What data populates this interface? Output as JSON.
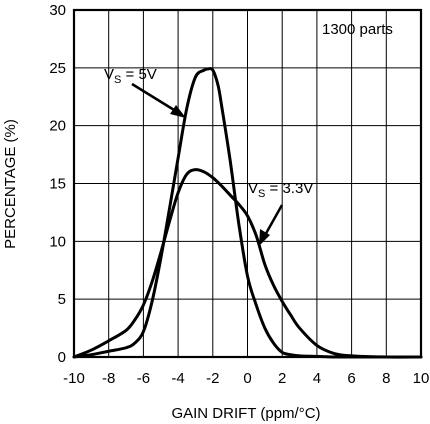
{
  "chart_data": {
    "type": "line",
    "xlabel": "GAIN DRIFT (ppm/°C)",
    "ylabel": "PERCENTAGE (%)",
    "xlim": [
      -10,
      10
    ],
    "ylim": [
      0,
      30
    ],
    "x_ticks": [
      -10,
      -8,
      -6,
      -4,
      -2,
      0,
      2,
      4,
      6,
      8,
      10
    ],
    "y_ticks": [
      0,
      5,
      10,
      15,
      20,
      25,
      30
    ],
    "x_tick_labels": [
      "-10",
      "-8",
      "-6",
      "-4",
      "-2",
      "0",
      "2",
      "4",
      "6",
      "8",
      "10"
    ],
    "y_tick_labels": [
      "0",
      "5",
      "10",
      "15",
      "20",
      "25",
      "30"
    ],
    "grid": true,
    "annotations": {
      "parts": "1300 parts",
      "vs5_prefix": "V",
      "vs5_sub": "S",
      "vs5_value": " = 5V",
      "vs33_prefix": "V",
      "vs33_sub": "S",
      "vs33_value": " = 3.3V"
    },
    "series": [
      {
        "x": [
          -10,
          -9,
          -8,
          -7,
          -6.5,
          -6,
          -5.5,
          -5,
          -4.5,
          -4,
          -3.5,
          -3,
          -2.5,
          -2.3,
          -2,
          -1.7,
          -1.5,
          -1,
          -0.5,
          0,
          0.5,
          1,
          1.5,
          2,
          2.5,
          3,
          4,
          5,
          6,
          8,
          10
        ],
        "values": [
          0,
          0.2,
          0.5,
          0.8,
          1.2,
          2.2,
          4.8,
          8.5,
          12.8,
          17.2,
          21.5,
          24.2,
          24.8,
          24.9,
          24.8,
          23.5,
          21.8,
          17,
          11.5,
          7,
          4.5,
          2.5,
          1.2,
          0.4,
          0.2,
          0.1,
          0.05,
          0,
          0,
          0,
          0
        ],
        "color": "#000000"
      },
      {
        "x": [
          -10,
          -9,
          -8,
          -7,
          -6.5,
          -6,
          -5.5,
          -5,
          -4.5,
          -4,
          -3.5,
          -3,
          -2.5,
          -2,
          -1.5,
          -1,
          -0.5,
          0,
          0.5,
          1,
          1.5,
          2,
          2.5,
          3,
          4,
          5,
          6,
          8,
          10
        ],
        "values": [
          0,
          0.6,
          1.4,
          2.3,
          3.2,
          4.5,
          6.5,
          9.0,
          11.7,
          14.2,
          15.8,
          16.2,
          16.0,
          15.5,
          14.8,
          14.0,
          13.2,
          12.2,
          10.5,
          8.0,
          6.2,
          4.8,
          3.6,
          2.5,
          1.0,
          0.3,
          0.1,
          0,
          0
        ],
        "color": "#000000"
      }
    ]
  }
}
